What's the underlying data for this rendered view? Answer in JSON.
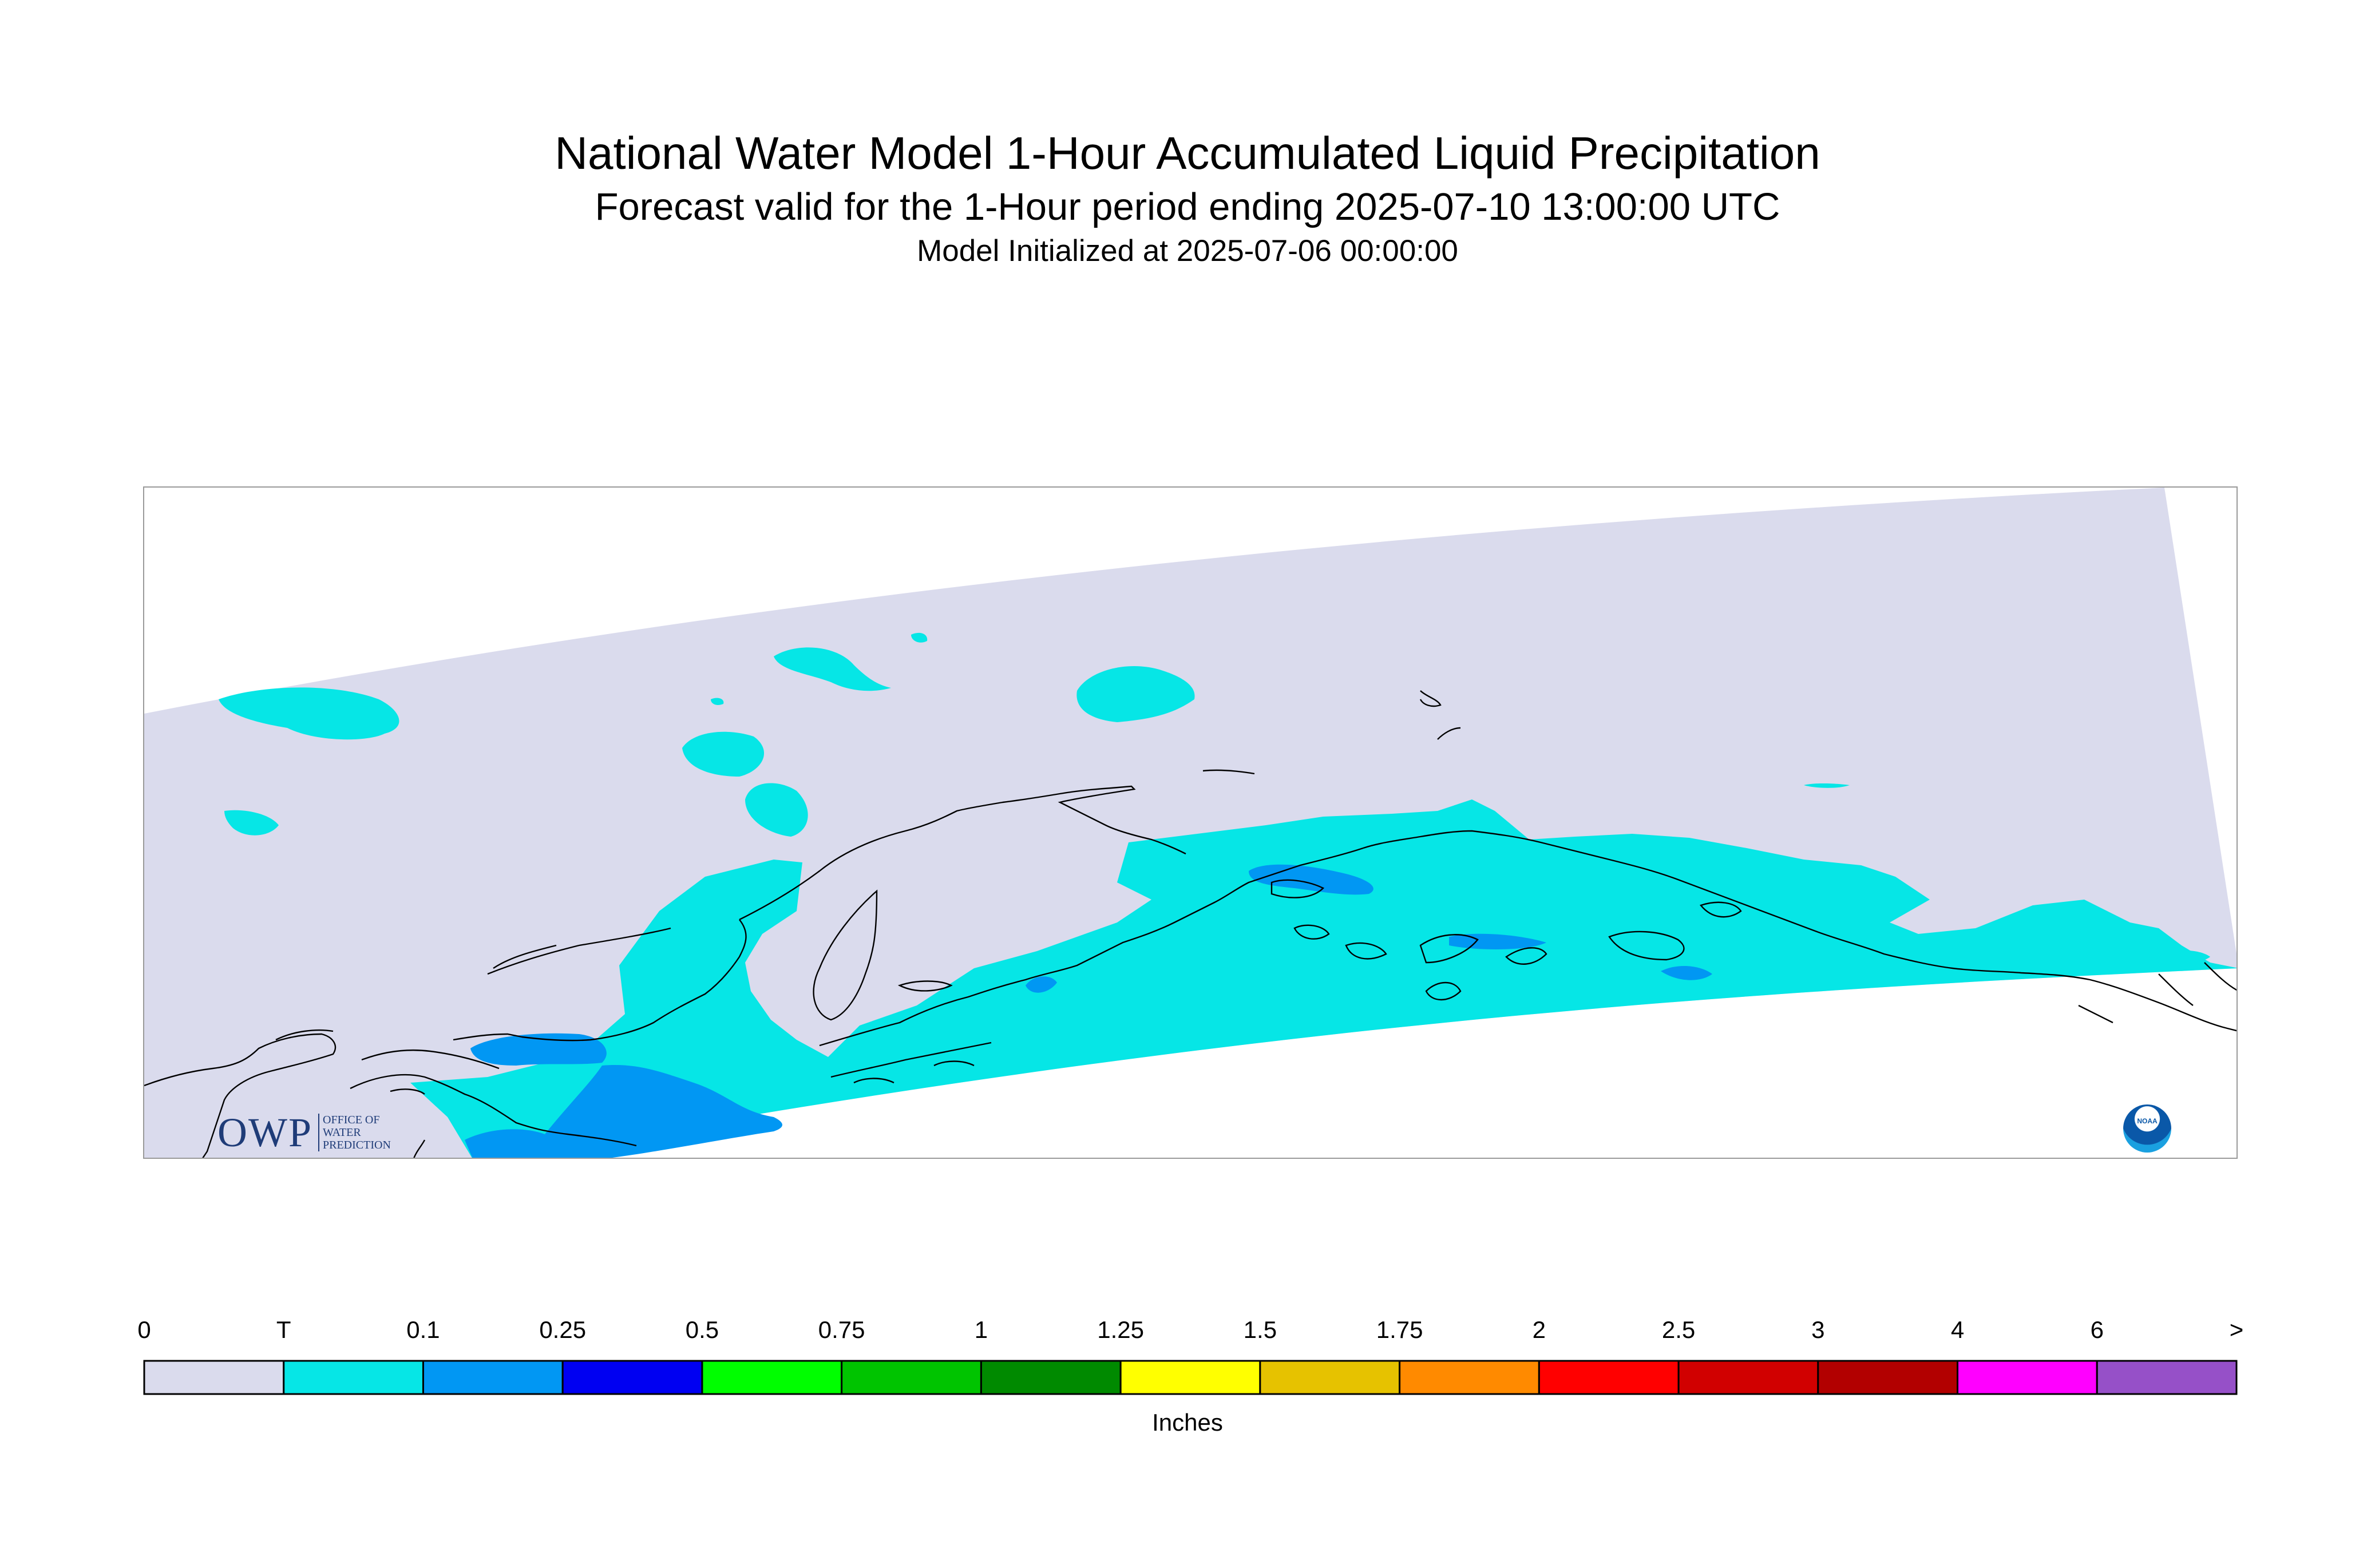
{
  "header": {
    "title": "National Water Model 1-Hour Accumulated Liquid Precipitation",
    "subtitle": "Forecast valid for the 1-Hour period ending 2025-07-10 13:00:00 UTC",
    "init_line": "Model Initialized at 2025-07-06 00:00:00"
  },
  "logos": {
    "owp_mark": "OWP",
    "owp_text": [
      "OFFICE OF",
      "WATER",
      "PREDICTION"
    ],
    "noaa_text": "NOAA"
  },
  "legend": {
    "units": "Inches",
    "tick_labels": [
      "0",
      "T",
      "0.1",
      "0.25",
      "0.5",
      "0.75",
      "1",
      "1.25",
      "1.5",
      "1.75",
      "2",
      "2.5",
      "3",
      "4",
      "6",
      ">"
    ],
    "colors": [
      "#dadbed",
      "#06e6e6",
      "#0197f3",
      "#0000f2",
      "#00fe00",
      "#00c400",
      "#008a00",
      "#ffff00",
      "#e6c200",
      "#ff8a00",
      "#ff0000",
      "#d10000",
      "#b20000",
      "#ff00ff",
      "#9650c8"
    ]
  },
  "map_colors": {
    "domain_fill": "#dadbed",
    "trace_fill": "#06e6e6",
    "light_fill": "#0197f3",
    "coastline": "#000000",
    "frame": "#9a9a9a"
  }
}
